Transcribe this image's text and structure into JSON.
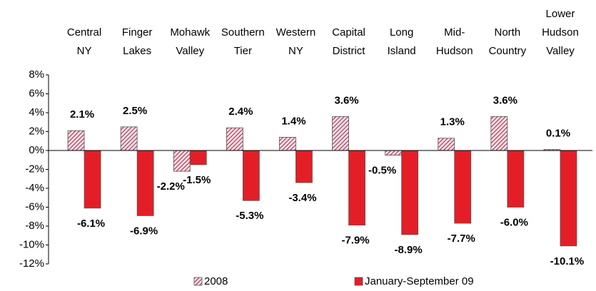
{
  "chart_data": {
    "type": "bar",
    "categories": [
      [
        "Central",
        "NY"
      ],
      [
        "Finger",
        "Lakes"
      ],
      [
        "Mohawk",
        "Valley"
      ],
      [
        "Southern",
        "Tier"
      ],
      [
        "Western",
        "NY"
      ],
      [
        "Capital",
        "District"
      ],
      [
        "Long",
        "Island"
      ],
      [
        "Mid-",
        "Hudson"
      ],
      [
        "North",
        "Country"
      ],
      [
        "Lower",
        "Hudson",
        "Valley"
      ]
    ],
    "series": [
      {
        "name": "2008",
        "color": "#a3284a",
        "hatch": true,
        "values": [
          2.1,
          2.5,
          -2.2,
          2.4,
          1.4,
          3.6,
          -0.5,
          1.3,
          3.6,
          0.1
        ],
        "value_labels": [
          "2.1%",
          "2.5%",
          "-2.2%",
          "2.4%",
          "1.4%",
          "3.6%",
          "-0.5%",
          "1.3%",
          "3.6%",
          "0.1%"
        ]
      },
      {
        "name": "January-September 09",
        "color": "#e41e26",
        "hatch": false,
        "values": [
          -6.1,
          -6.9,
          -1.5,
          -5.3,
          -3.4,
          -7.9,
          -8.9,
          -7.7,
          -6.0,
          -10.1
        ],
        "value_labels": [
          "-6.1%",
          "-6.9%",
          "-1.5%",
          "-5.3%",
          "-3.4%",
          "-7.9%",
          "-8.9%",
          "-7.7%",
          "-6.0%",
          "-10.1%"
        ]
      }
    ],
    "ylim": [
      -12,
      8
    ],
    "yticks": [
      {
        "value": -12,
        "label": "-12%"
      },
      {
        "value": -10,
        "label": "-10%"
      },
      {
        "value": -8,
        "label": "-8%"
      },
      {
        "value": -6,
        "label": "-6%"
      },
      {
        "value": -4,
        "label": "-4%"
      },
      {
        "value": -2,
        "label": "-2%"
      },
      {
        "value": 0,
        "label": "0%"
      },
      {
        "value": 2,
        "label": "2%"
      },
      {
        "value": 4,
        "label": "4%"
      },
      {
        "value": 6,
        "label": "6%"
      },
      {
        "value": 8,
        "label": "8%"
      }
    ],
    "grid": false,
    "legend": "bottom"
  }
}
